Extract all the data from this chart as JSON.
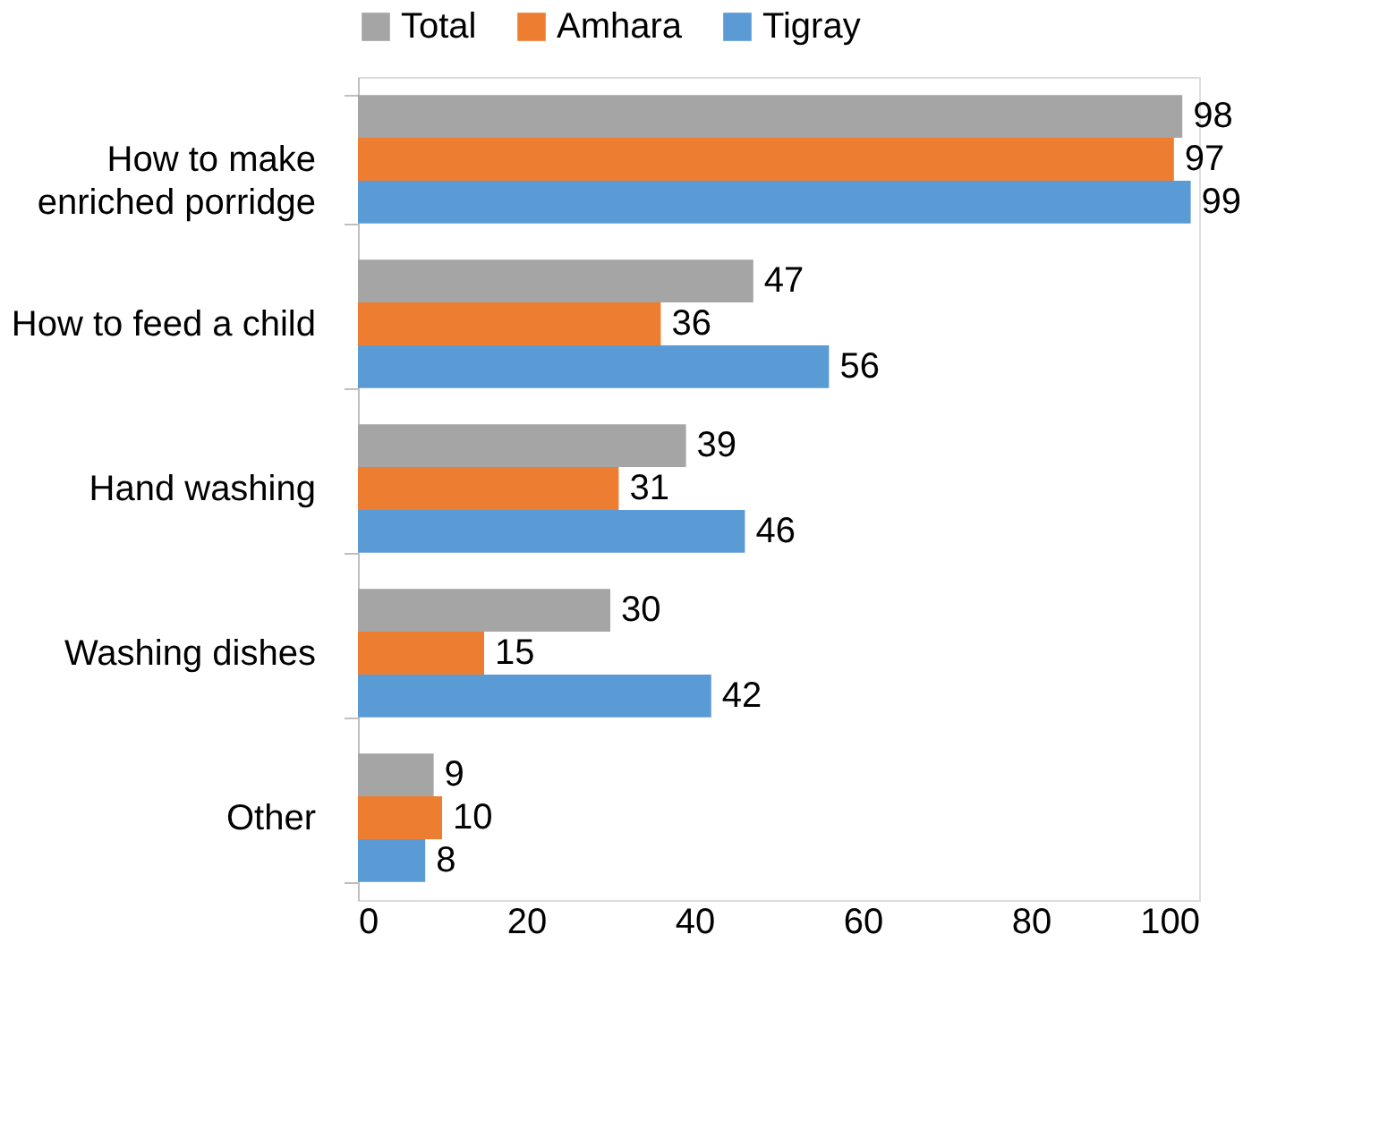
{
  "chart_data": {
    "type": "bar",
    "orientation": "horizontal",
    "categories": [
      "How to make\nenriched porridge",
      "How to feed a child",
      "Hand washing",
      "Washing dishes",
      "Other"
    ],
    "series": [
      {
        "name": "Total",
        "color": "#a5a5a5",
        "values": [
          98,
          47,
          39,
          30,
          9
        ]
      },
      {
        "name": "Amhara",
        "color": "#ed7d31",
        "values": [
          97,
          36,
          31,
          15,
          10
        ]
      },
      {
        "name": "Tigray",
        "color": "#5b9bd5",
        "values": [
          99,
          56,
          46,
          42,
          8
        ]
      }
    ],
    "xlim": [
      0,
      100
    ],
    "xticks": [
      0,
      20,
      40,
      60,
      80,
      100
    ],
    "grid": false,
    "legend": "top",
    "data_labels": true
  }
}
